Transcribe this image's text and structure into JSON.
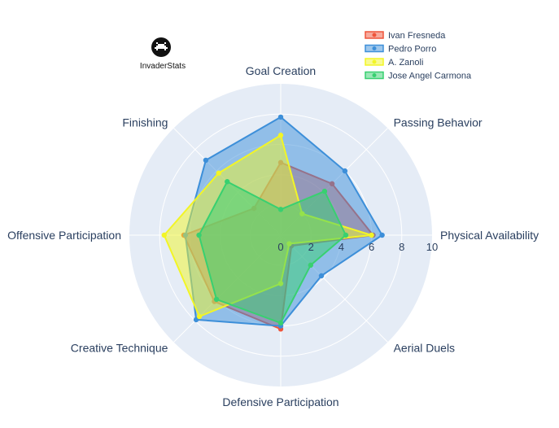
{
  "logo": {
    "text": "InvaderStats"
  },
  "chart_data": {
    "type": "radar",
    "axes": [
      "Physical Availability",
      "Passing Behavior",
      "Goal Creation",
      "Finishing",
      "Offensive Participation",
      "Creative Technique",
      "Defensive Participation",
      "Aerial Duels"
    ],
    "rlim": [
      0,
      10
    ],
    "radial_ticks": [
      0,
      2,
      4,
      6,
      8,
      10
    ],
    "legend_position": "top-right",
    "series": [
      {
        "name": "Ivan Fresneda",
        "color": "#ef553b",
        "values": [
          6.1,
          4.8,
          4.8,
          2.5,
          6.4,
          6.2,
          6.2,
          1.0
        ]
      },
      {
        "name": "Pedro Porro",
        "color": "#3d8fd9",
        "values": [
          6.7,
          6.0,
          7.8,
          7.0,
          6.3,
          7.9,
          6.0,
          3.8
        ]
      },
      {
        "name": "A. Zanoli",
        "color": "#f2f526",
        "values": [
          6.0,
          2.0,
          6.6,
          5.8,
          7.7,
          7.6,
          3.2,
          0.8
        ]
      },
      {
        "name": "Jose Angel Carmona",
        "color": "#38d070",
        "values": [
          4.3,
          4.1,
          1.7,
          5.0,
          5.4,
          6.0,
          5.8,
          2.8
        ]
      }
    ]
  }
}
